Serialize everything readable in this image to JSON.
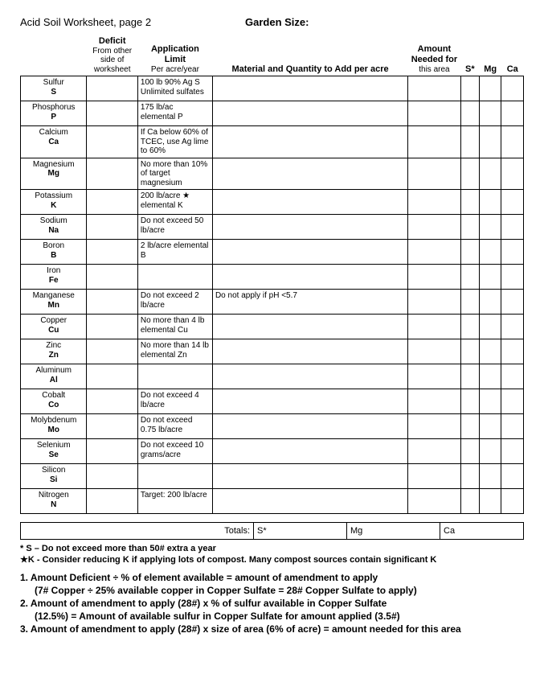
{
  "header": {
    "title_left": "Acid Soil Worksheet, page 2",
    "title_right": "Garden Size:"
  },
  "columns": {
    "deficit_head": "Deficit",
    "deficit_sub": "From other side of worksheet",
    "limit_head": "Application Limit",
    "limit_sub": "Per acre/year",
    "material": "Material and Quantity to Add per acre",
    "amount_head": "Amount Needed for",
    "amount_sub": "this area",
    "s": "S*",
    "mg": "Mg",
    "ca": "Ca"
  },
  "rows": [
    {
      "name": "Sulfur",
      "sym": "S",
      "limit": "100 lb 90% Ag S Unlimited sulfates",
      "material": ""
    },
    {
      "name": "Phosphorus",
      "sym": "P",
      "limit": "175 lb/ac elemental P",
      "material": ""
    },
    {
      "name": "Calcium",
      "sym": "Ca",
      "limit": "If Ca below 60% of TCEC, use Ag lime to 60%",
      "material": ""
    },
    {
      "name": "Magnesium",
      "sym": "Mg",
      "limit": "No more than 10% of target magnesium",
      "material": ""
    },
    {
      "name": "Potassium",
      "sym": "K",
      "limit": "200 lb/acre  ★ elemental K",
      "material": ""
    },
    {
      "name": "Sodium",
      "sym": "Na",
      "limit": "Do not exceed 50 lb/acre",
      "material": ""
    },
    {
      "name": "Boron",
      "sym": "B",
      "limit": "2 lb/acre elemental B",
      "material": ""
    },
    {
      "name": "Iron",
      "sym": "Fe",
      "limit": "",
      "material": ""
    },
    {
      "name": "Manganese",
      "sym": "Mn",
      "limit": "Do not exceed 2 lb/acre",
      "material": "Do not apply if pH <5.7"
    },
    {
      "name": "Copper",
      "sym": "Cu",
      "limit": "No more than  4 lb elemental Cu",
      "material": ""
    },
    {
      "name": "Zinc",
      "sym": "Zn",
      "limit": "No more than 14 lb elemental Zn",
      "material": ""
    },
    {
      "name": "Aluminum",
      "sym": "Al",
      "limit": "",
      "material": ""
    },
    {
      "name": "Cobalt",
      "sym": "Co",
      "limit": "Do not exceed 4 lb/acre",
      "material": ""
    },
    {
      "name": "Molybdenum",
      "sym": "Mo",
      "limit": "Do not exceed 0.75 lb/acre",
      "material": ""
    },
    {
      "name": "Selenium",
      "sym": "Se",
      "limit": "Do not exceed 10 grams/acre",
      "material": ""
    },
    {
      "name": "Silicon",
      "sym": "Si",
      "limit": "",
      "material": ""
    },
    {
      "name": "Nitrogen",
      "sym": "N",
      "limit": "Target: 200 lb/acre",
      "material": ""
    }
  ],
  "totals": {
    "label": "Totals:",
    "s": "S*",
    "mg": "Mg",
    "ca": "Ca"
  },
  "footnotes": {
    "f1": "* S – Do not exceed more than 50# extra a year",
    "f2": "★K - Consider reducing K if applying lots of compost. Many compost sources contain significant K"
  },
  "instructions": {
    "l1": "1. Amount Deficient ÷ % of element available = amount of amendment to apply",
    "l1b": "(7# Copper ÷ 25% available copper in Copper Sulfate = 28# Copper Sulfate to apply)",
    "l2": "2. Amount of amendment to apply (28#) x % of sulfur available in Copper Sulfate",
    "l2b": "(12.5%) = Amount of available sulfur in Copper Sulfate for amount applied (3.5#)",
    "l3": "3. Amount of amendment to apply (28#) x size of area (6% of acre) = amount needed for this area"
  }
}
